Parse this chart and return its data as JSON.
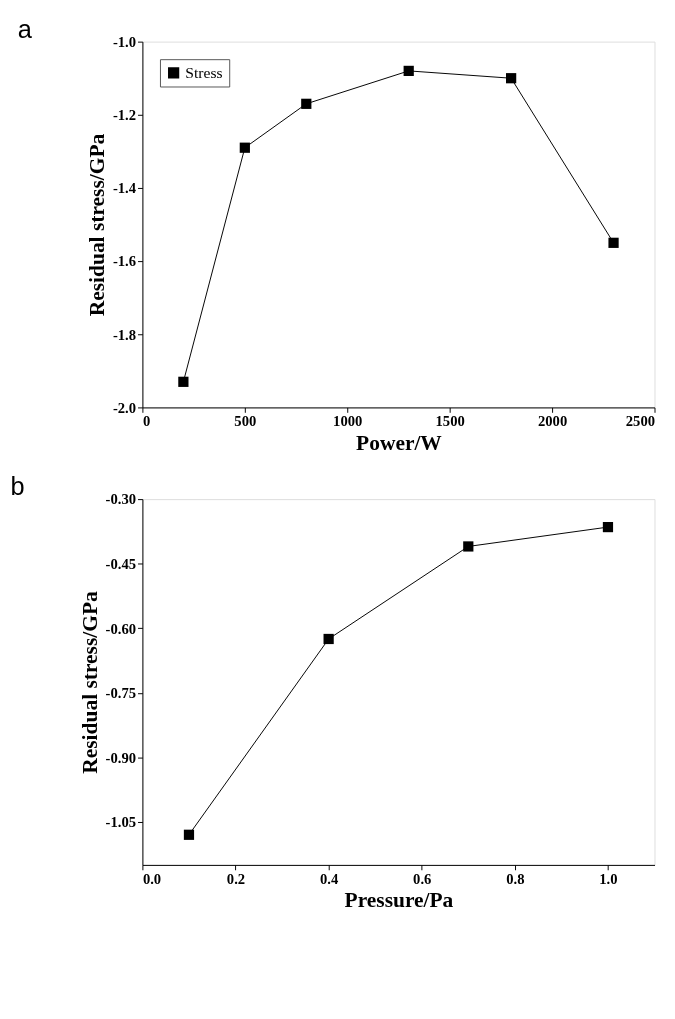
{
  "chart_data": [
    {
      "type": "line",
      "title": "a",
      "xlabel": "Power/W",
      "ylabel": "Residual stress/GPa",
      "x": [
        200,
        500,
        800,
        1300,
        1800,
        2300
      ],
      "series": [
        {
          "name": "Stress",
          "color": "#000000",
          "values": [
            -1.93,
            -1.29,
            -1.17,
            -1.08,
            -1.1,
            -1.55
          ]
        }
      ],
      "xlim": [
        0,
        2500
      ],
      "xticks": [
        0,
        500,
        1000,
        1500,
        2000,
        2500
      ],
      "ylim": [
        -2.0,
        -1.0
      ],
      "yticks": [
        {
          "value": -2.0,
          "label": "-2.0"
        },
        {
          "value": -1.8,
          "label": "-1.8"
        },
        {
          "value": -1.6,
          "label": "-1.6"
        },
        {
          "value": -1.4,
          "label": "-1.4"
        },
        {
          "value": -1.2,
          "label": "-1.2"
        },
        {
          "value": -1.0,
          "label": "-1.0"
        }
      ],
      "marker": "square",
      "line_style": "solid",
      "legend": "top left"
    },
    {
      "type": "line",
      "title": "b",
      "xlabel": "Pressure/Pa",
      "ylabel": "Residual stress/GPa",
      "x": [
        0.1,
        0.4,
        0.7,
        1.0
      ],
      "series": [
        {
          "name": "Stress",
          "color": "#000000",
          "values": [
            -1.08,
            -0.625,
            -0.41,
            -0.365
          ]
        }
      ],
      "xlim": [
        0.0,
        1.1
      ],
      "xticks": [
        {
          "value": 0.0,
          "label": "0.0"
        },
        0.2,
        0.4,
        0.6,
        0.8,
        {
          "value": 1.0,
          "label": "1.0"
        }
      ],
      "ylim": [
        -1.15,
        -0.3
      ],
      "yticks": [
        {
          "value": -1.05,
          "label": "-1.05"
        },
        {
          "value": -0.9,
          "label": "-0.90"
        },
        {
          "value": -0.75,
          "label": "-0.75"
        },
        {
          "value": -0.6,
          "label": "-0.60"
        },
        {
          "value": -0.45,
          "label": "-0.45"
        },
        {
          "value": -0.3,
          "label": "-0.30"
        }
      ],
      "marker": "square",
      "line_style": "solid",
      "legend": "top left"
    }
  ]
}
